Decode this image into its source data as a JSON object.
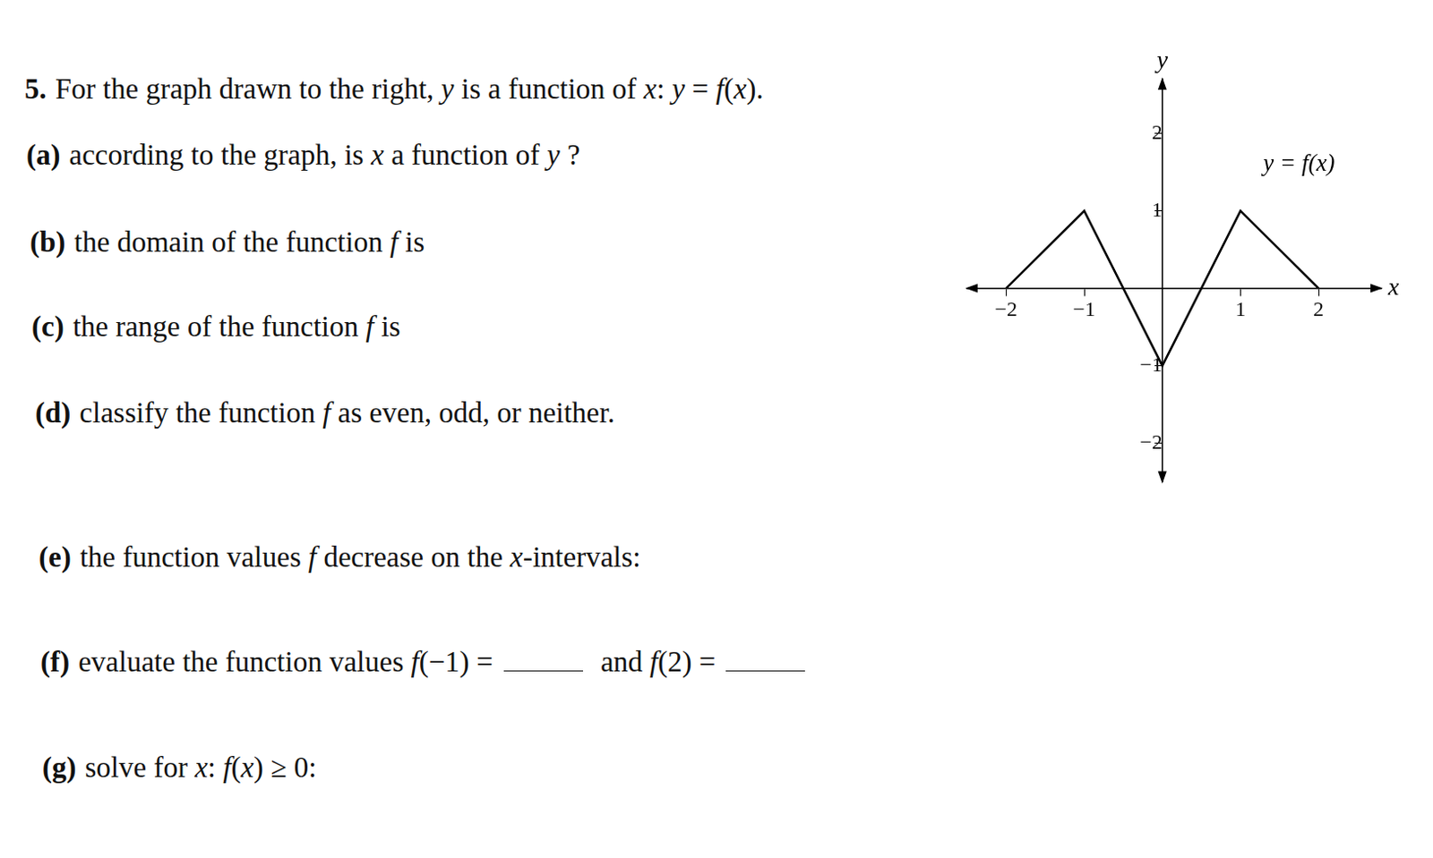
{
  "problem": {
    "number": "5.",
    "intro": "For the graph drawn to the right, y is a function of x: y = f(x).",
    "parts": [
      {
        "label": "(a)",
        "text": [
          "according to the graph, is x a function of y ?"
        ]
      },
      {
        "label": "(b)",
        "text": [
          "the domain of the function f is"
        ]
      },
      {
        "label": "(c)",
        "text": [
          "the range of the function f is"
        ]
      },
      {
        "label": "(d)",
        "text": [
          "classify the function f as even, odd, or neither."
        ]
      },
      {
        "label": "(e)",
        "text": [
          "the function values f decrease on the x-intervals:"
        ]
      },
      {
        "label": "(f)",
        "text": [
          "evaluate the function values f(−1) =",
          "and f(2) ="
        ]
      },
      {
        "label": "(g)",
        "text": [
          "solve for x:   f(x) ≥ 0:"
        ]
      }
    ]
  },
  "chart_data": {
    "type": "line",
    "x": [
      -2,
      -1,
      0,
      1,
      2
    ],
    "values": [
      0,
      1,
      -1,
      1,
      0
    ],
    "color": "#000000",
    "xlabel": "x",
    "ylabel": "y",
    "annotation": "y = f(x)",
    "xlim": [
      -2.5,
      2.8
    ],
    "ylim": [
      -2.5,
      2.7
    ],
    "xticks": [
      {
        "value": -2,
        "label": "−2"
      },
      {
        "value": -1,
        "label": "−1"
      },
      1,
      2
    ],
    "yticks": [
      {
        "value": -2,
        "label": "−2"
      },
      {
        "value": -1,
        "label": "−1"
      },
      1,
      2
    ],
    "grid": false
  }
}
